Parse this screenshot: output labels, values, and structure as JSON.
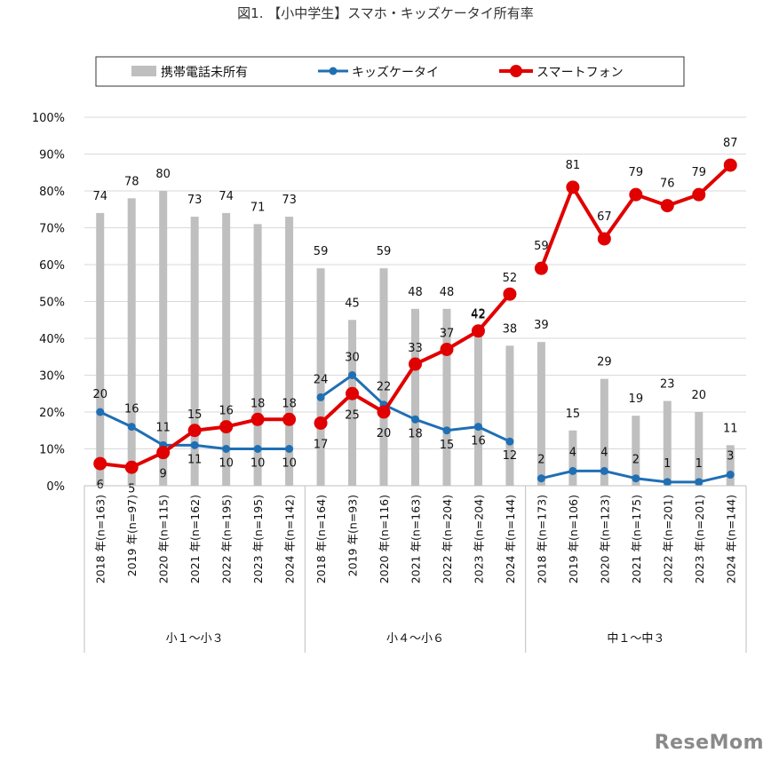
{
  "title": "図1. 【小中学生】スマホ・キッズケータイ所有率",
  "watermark": "ReseMom",
  "colors": {
    "bar": "#bfbfbf",
    "kids": "#1f6fb4",
    "smart": "#e00000",
    "grid": "#d9d9d9"
  },
  "chart_data": {
    "type": "bar+line",
    "title": "図1. 【小中学生】スマホ・キッズケータイ所有率",
    "ylim": [
      0,
      100
    ],
    "yticks": [
      "0%",
      "10%",
      "20%",
      "30%",
      "40%",
      "50%",
      "60%",
      "70%",
      "80%",
      "90%",
      "100%"
    ],
    "grid": true,
    "legend_position": "top",
    "groups": [
      {
        "name": "小１～小３",
        "categories": [
          "2018 年(n=163)",
          "2019 年(n=97)",
          "2020 年(n=115)",
          "2021 年(n=162)",
          "2022 年(n=195)",
          "2023 年(n=195)",
          "2024 年(n=142)"
        ]
      },
      {
        "name": "小４～小６",
        "categories": [
          "2018 年(n=164)",
          "2019 年(n=93)",
          "2020 年(n=116)",
          "2021 年(n=163)",
          "2022 年(n=204)",
          "2023 年(n=204)",
          "2024 年(n=144)"
        ]
      },
      {
        "name": "中１～中３",
        "categories": [
          "2018 年(n=173)",
          "2019 年(n=106)",
          "2020 年(n=123)",
          "2021 年(n=175)",
          "2022 年(n=201)",
          "2023 年(n=201)",
          "2024 年(n=144)"
        ]
      }
    ],
    "series": [
      {
        "name": "携帯電話未所有",
        "type": "bar",
        "values": [
          [
            74,
            78,
            80,
            73,
            74,
            71,
            73
          ],
          [
            59,
            45,
            59,
            48,
            48,
            42,
            38
          ],
          [
            39,
            15,
            29,
            19,
            23,
            20,
            11
          ]
        ]
      },
      {
        "name": "キッズケータイ",
        "type": "line",
        "values": [
          [
            20,
            16,
            11,
            11,
            10,
            10,
            10
          ],
          [
            24,
            30,
            22,
            18,
            15,
            16,
            12
          ],
          [
            2,
            4,
            4,
            2,
            1,
            1,
            3
          ]
        ]
      },
      {
        "name": "スマートフォン",
        "type": "line",
        "values": [
          [
            6,
            5,
            9,
            15,
            16,
            18,
            18
          ],
          [
            17,
            25,
            20,
            33,
            37,
            42,
            52
          ],
          [
            59,
            81,
            67,
            79,
            76,
            79,
            87
          ]
        ]
      }
    ]
  }
}
